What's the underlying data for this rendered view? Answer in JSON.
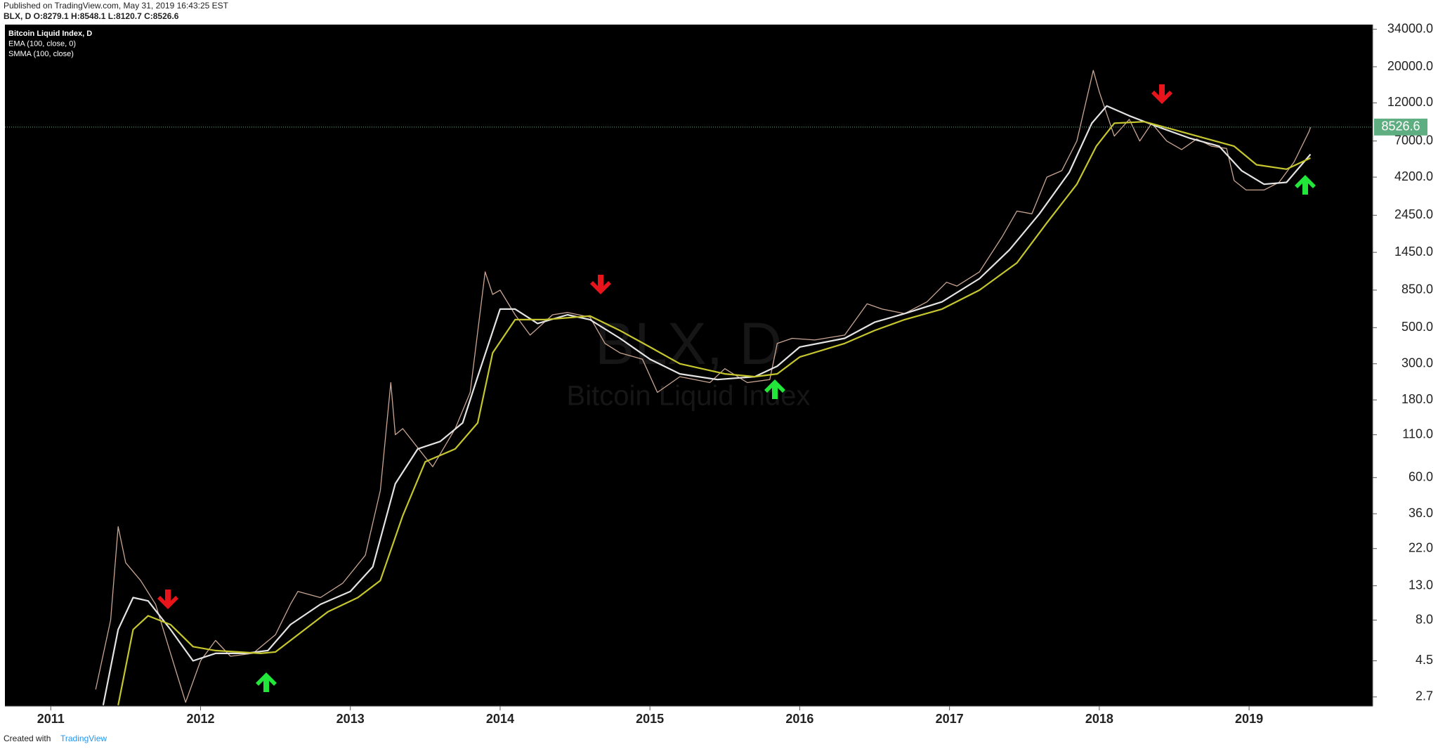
{
  "chart_data": {
    "type": "line",
    "published": "Published on TradingView.com, May 31, 2019 16:43:25 EST",
    "ohlc": "BLX, D O:8279.1 H:8548.1 L:8120.7 C:8526.6",
    "legend_title": "Bitcoin Liquid Index, D",
    "watermark": "BLX, D",
    "watermark_subtitle": "Bitcoin Liquid Index",
    "footer": "Created with",
    "footer_brand": "TradingView",
    "log_scale": true,
    "xlim": [
      2010.694,
      2019.825
    ],
    "xticks": [
      2011,
      2012,
      2013,
      2014,
      2015,
      2016,
      2017,
      2018,
      2019
    ],
    "ylim": [
      2.37,
      36300
    ],
    "yticks": [
      2.7,
      4.5,
      {
        "value": 8,
        "label": "8.0"
      },
      {
        "value": 13,
        "label": "13.0"
      },
      {
        "value": 22,
        "label": "22.0"
      },
      {
        "value": 36,
        "label": "36.0"
      },
      {
        "value": 60,
        "label": "60.0"
      },
      {
        "value": 110,
        "label": "110.0"
      },
      {
        "value": 180,
        "label": "180.0"
      },
      {
        "value": 300,
        "label": "300.0"
      },
      {
        "value": 500,
        "label": "500.0"
      },
      {
        "value": 850,
        "label": "850.0"
      },
      {
        "value": 1450,
        "label": "1450.0"
      },
      {
        "value": 2450,
        "label": "2450.0"
      },
      {
        "value": 4200,
        "label": "4200.0"
      },
      {
        "value": 7000,
        "label": "7000.0"
      },
      {
        "value": 12000,
        "label": "12000.0"
      },
      {
        "value": 20000,
        "label": "20000.0"
      },
      {
        "value": 34000,
        "label": "34000.0"
      }
    ],
    "last_value": 8526.6,
    "last_color": "#5fae82",
    "series": [
      {
        "name": "Bitcoin Liquid Index, D",
        "color": "#c9a592",
        "x": [
          2011.3,
          2011.4,
          2011.45,
          2011.5,
          2011.6,
          2011.7,
          2011.8,
          2011.9,
          2012.0,
          2012.1,
          2012.2,
          2012.35,
          2012.5,
          2012.6,
          2012.65,
          2012.8,
          2012.95,
          2013.1,
          2013.2,
          2013.27,
          2013.3,
          2013.35,
          2013.5,
          2013.55,
          2013.7,
          2013.8,
          2013.9,
          2013.95,
          2014.0,
          2014.1,
          2014.2,
          2014.35,
          2014.45,
          2014.6,
          2014.7,
          2014.8,
          2014.95,
          2015.05,
          2015.2,
          2015.4,
          2015.5,
          2015.65,
          2015.8,
          2015.85,
          2015.95,
          2016.1,
          2016.3,
          2016.45,
          2016.55,
          2016.7,
          2016.85,
          2016.98,
          2017.05,
          2017.2,
          2017.35,
          2017.45,
          2017.55,
          2017.65,
          2017.75,
          2017.85,
          2017.96,
          2018.0,
          2018.1,
          2018.2,
          2018.27,
          2018.35,
          2018.45,
          2018.55,
          2018.65,
          2018.75,
          2018.85,
          2018.9,
          2018.98,
          2019.1,
          2019.2,
          2019.3,
          2019.4,
          2019.41
        ],
        "values": [
          3,
          8,
          30,
          18,
          14,
          10,
          5,
          2.5,
          4.5,
          6,
          4.8,
          5,
          6.5,
          10,
          12,
          11,
          13.5,
          20,
          50,
          230,
          110,
          120,
          80,
          70,
          120,
          200,
          1100,
          800,
          850,
          600,
          450,
          600,
          620,
          580,
          400,
          350,
          320,
          200,
          250,
          230,
          280,
          230,
          240,
          400,
          430,
          420,
          450,
          700,
          650,
          610,
          720,
          950,
          900,
          1100,
          1800,
          2600,
          2500,
          4200,
          4600,
          7000,
          19000,
          14000,
          7500,
          9500,
          7000,
          9000,
          7000,
          6200,
          7200,
          6500,
          6300,
          4000,
          3500,
          3500,
          3900,
          5200,
          8000,
          8500
        ]
      },
      {
        "name": "EMA (100, close, 0)",
        "color": "#e4e4e4",
        "x": [
          2011.35,
          2011.45,
          2011.55,
          2011.65,
          2011.8,
          2011.95,
          2012.1,
          2012.3,
          2012.45,
          2012.6,
          2012.8,
          2013.0,
          2013.15,
          2013.3,
          2013.45,
          2013.6,
          2013.75,
          2013.85,
          2014.0,
          2014.1,
          2014.25,
          2014.45,
          2014.6,
          2014.8,
          2015.0,
          2015.2,
          2015.45,
          2015.7,
          2015.85,
          2016.0,
          2016.3,
          2016.5,
          2016.7,
          2016.95,
          2017.2,
          2017.4,
          2017.6,
          2017.8,
          2017.95,
          2018.05,
          2018.2,
          2018.4,
          2018.6,
          2018.8,
          2018.95,
          2019.1,
          2019.25,
          2019.41
        ],
        "values": [
          2.4,
          7,
          11,
          10.5,
          7,
          4.5,
          5,
          5,
          5.2,
          7.5,
          10,
          12,
          17,
          55,
          90,
          100,
          130,
          250,
          650,
          650,
          530,
          600,
          560,
          430,
          320,
          260,
          240,
          250,
          290,
          380,
          430,
          540,
          610,
          720,
          1000,
          1500,
          2500,
          4500,
          9000,
          11500,
          10000,
          8500,
          7300,
          6500,
          4600,
          3800,
          3900,
          5800
        ]
      },
      {
        "name": "SMMA (100, close)",
        "color": "#c6c62e",
        "x": [
          2011.45,
          2011.55,
          2011.65,
          2011.8,
          2011.95,
          2012.1,
          2012.4,
          2012.5,
          2012.65,
          2012.85,
          2013.05,
          2013.2,
          2013.35,
          2013.5,
          2013.7,
          2013.85,
          2013.95,
          2014.1,
          2014.3,
          2014.6,
          2014.8,
          2015.0,
          2015.2,
          2015.5,
          2015.7,
          2015.85,
          2016.0,
          2016.3,
          2016.5,
          2016.7,
          2016.95,
          2017.2,
          2017.45,
          2017.65,
          2017.85,
          2017.98,
          2018.1,
          2018.3,
          2018.5,
          2018.7,
          2018.9,
          2019.05,
          2019.25,
          2019.41
        ],
        "values": [
          2.4,
          7,
          8.5,
          7.5,
          5.5,
          5.2,
          5,
          5.1,
          6.5,
          9,
          11,
          14,
          35,
          75,
          90,
          130,
          350,
          560,
          560,
          590,
          480,
          380,
          300,
          260,
          250,
          260,
          330,
          400,
          480,
          560,
          650,
          850,
          1250,
          2200,
          3800,
          6500,
          9000,
          9200,
          8200,
          7300,
          6500,
          5000,
          4700,
          5500
        ]
      }
    ]
  }
}
